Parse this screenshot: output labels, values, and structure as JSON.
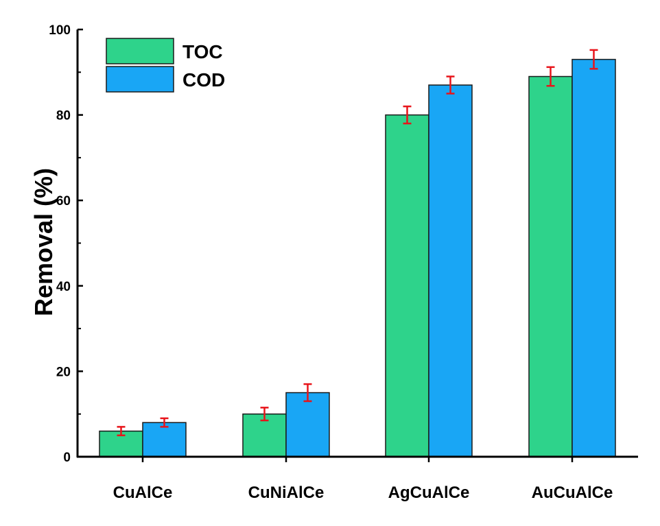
{
  "chart_data": {
    "type": "bar",
    "title": "",
    "xlabel": "",
    "ylabel": "Removal (%)",
    "ylim": [
      0,
      100
    ],
    "yticks": [
      0,
      20,
      40,
      60,
      80,
      100
    ],
    "categories": [
      "CuAlCe",
      "CuNiAlCe",
      "AgCuAlCe",
      "AuCuAlCe"
    ],
    "series": [
      {
        "name": "TOC",
        "color": "#2ed38b",
        "values": [
          6,
          10,
          80,
          89
        ],
        "errors": [
          1,
          1.5,
          2,
          2.2
        ]
      },
      {
        "name": "COD",
        "color": "#19a6f5",
        "values": [
          8,
          15,
          87,
          93
        ],
        "errors": [
          1,
          2,
          2,
          2.2
        ]
      }
    ],
    "error_bar_color": "#e8141a",
    "legend_position": "top-left",
    "grid": false
  }
}
